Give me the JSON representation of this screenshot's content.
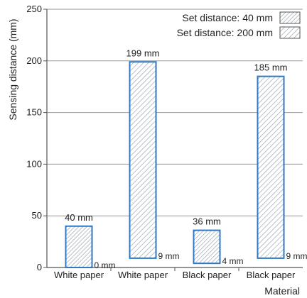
{
  "chart_data": {
    "type": "bar",
    "title": "",
    "xlabel": "Material",
    "ylabel": "Sensing distance (mm)",
    "ylim": [
      0,
      250
    ],
    "yticks": [
      0,
      50,
      100,
      150,
      200,
      250
    ],
    "grid": true,
    "legend_position": "top-right",
    "categories": [
      "White paper",
      "White paper",
      "Black paper",
      "Black paper"
    ],
    "series": [
      {
        "name": "Set distance: 40 mm",
        "hatch": "fine-diagonal",
        "bars": [
          {
            "category_index": 0,
            "min": 0,
            "max": 40,
            "max_label": "40 mm",
            "min_label": "0 mm"
          },
          {
            "category_index": 2,
            "min": 4,
            "max": 36,
            "max_label": "36 mm",
            "min_label": "4 mm"
          }
        ]
      },
      {
        "name": "Set distance: 200 mm",
        "hatch": "wide-diagonal",
        "bars": [
          {
            "category_index": 1,
            "min": 9,
            "max": 199,
            "max_label": "199 mm",
            "min_label": "9 mm"
          },
          {
            "category_index": 3,
            "min": 9,
            "max": 185,
            "max_label": "185 mm",
            "min_label": "9 mm"
          }
        ]
      }
    ],
    "colors": {
      "bar_border": "#2f78c4",
      "hatch": "#8a9aa6",
      "grid": "#9a9a9a",
      "axis": "#555555"
    }
  }
}
